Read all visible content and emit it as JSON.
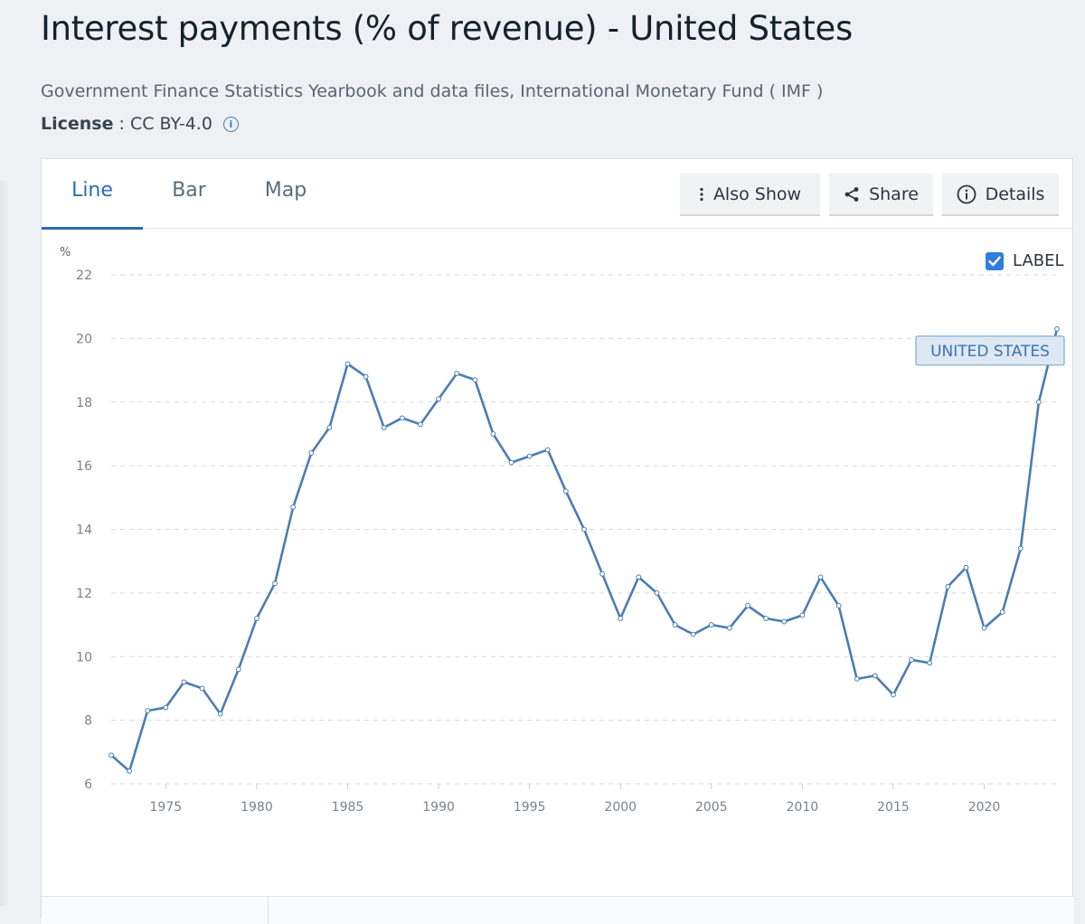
{
  "page": {
    "title": "Interest payments (% of revenue) - United States",
    "source": "Government Finance Statistics Yearbook and data files, International Monetary Fund ( IMF )",
    "license_label": "License",
    "license_value": ": CC BY-4.0"
  },
  "tabs": [
    {
      "label": "Line",
      "active": true
    },
    {
      "label": "Bar",
      "active": false
    },
    {
      "label": "Map",
      "active": false
    }
  ],
  "toolbar": {
    "also_show": "Also Show",
    "share": "Share",
    "details": "Details"
  },
  "label_toggle": {
    "label": "LABEL",
    "checked": true
  },
  "colors": {
    "line": "#4a7db3",
    "accent": "#2b6cb0",
    "checkbox": "#2f7de1"
  },
  "chart_data": {
    "type": "line",
    "title": "Interest payments (% of revenue) - United States",
    "ylabel": "%",
    "xlabel": "",
    "ylim": [
      6,
      22
    ],
    "yticks": [
      6,
      8,
      10,
      12,
      14,
      16,
      18,
      20,
      22
    ],
    "xticks": [
      1975,
      1980,
      1985,
      1990,
      1995,
      2000,
      2005,
      2010,
      2015,
      2020
    ],
    "xlim": [
      1972,
      2024
    ],
    "grid": true,
    "series": [
      {
        "name": "UNITED STATES",
        "x": [
          1972,
          1973,
          1974,
          1975,
          1976,
          1977,
          1978,
          1979,
          1980,
          1981,
          1982,
          1983,
          1984,
          1985,
          1986,
          1987,
          1988,
          1989,
          1990,
          1991,
          1992,
          1993,
          1994,
          1995,
          1996,
          1997,
          1998,
          1999,
          2000,
          2001,
          2002,
          2003,
          2004,
          2005,
          2006,
          2007,
          2008,
          2009,
          2010,
          2011,
          2012,
          2013,
          2014,
          2015,
          2016,
          2017,
          2018,
          2019,
          2020,
          2021,
          2022,
          2023,
          2024
        ],
        "values": [
          6.9,
          6.4,
          8.3,
          8.4,
          9.2,
          9.0,
          8.2,
          9.6,
          11.2,
          12.3,
          14.7,
          16.4,
          17.2,
          19.2,
          18.8,
          17.2,
          17.5,
          17.3,
          18.1,
          18.9,
          18.7,
          17.0,
          16.1,
          16.3,
          16.5,
          15.2,
          14.0,
          12.6,
          11.2,
          12.5,
          12.0,
          11.0,
          10.7,
          11.0,
          10.9,
          11.6,
          11.2,
          11.1,
          11.3,
          12.5,
          11.6,
          9.3,
          9.4,
          8.8,
          9.9,
          9.8,
          12.2,
          12.8,
          10.9,
          11.4,
          13.4,
          18.0,
          20.3
        ]
      }
    ]
  }
}
